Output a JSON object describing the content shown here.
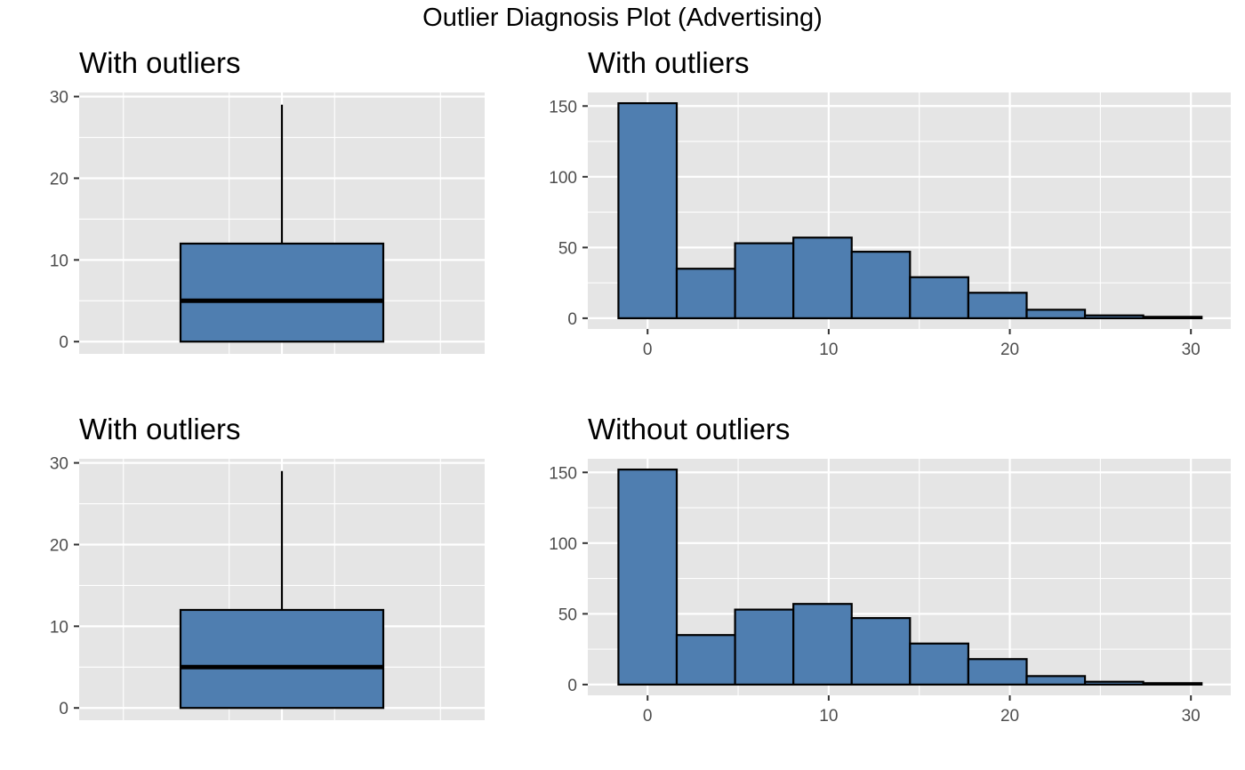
{
  "title": "Outlier Diagnosis Plot (Advertising)",
  "colors": {
    "fill": "#4f7eb0",
    "stroke": "#000000",
    "panel": "#e5e5e5",
    "grid": "#ffffff"
  },
  "chart_data": [
    {
      "type": "box",
      "title": "With outliers",
      "ylim": [
        -1.5,
        30.5
      ],
      "yticks": [
        0,
        10,
        20,
        30
      ],
      "ytick_labels": [
        "0",
        "10",
        "20",
        "30"
      ],
      "box": {
        "min": 0,
        "q1": 0,
        "median": 5,
        "q3": 12,
        "max": 29
      },
      "grid": true
    },
    {
      "type": "bar",
      "title": "With outliers",
      "xlim": [
        -3.3,
        32.2
      ],
      "ylim": [
        -7.6,
        159.6
      ],
      "xticks": [
        0,
        10,
        20,
        30
      ],
      "xtick_labels": [
        "0",
        "10",
        "20",
        "30"
      ],
      "yticks": [
        0,
        50,
        100,
        150
      ],
      "ytick_labels": [
        "0",
        "50",
        "100",
        "150"
      ],
      "bin_width": 3.22,
      "bin_starts": [
        -1.61,
        1.61,
        4.83,
        8.05,
        11.27,
        14.49,
        17.71,
        20.93,
        24.15,
        27.37
      ],
      "values": [
        152,
        35,
        53,
        57,
        47,
        29,
        18,
        6,
        2,
        1
      ],
      "grid": true
    },
    {
      "type": "box",
      "title": "With outliers",
      "ylim": [
        -1.5,
        30.5
      ],
      "yticks": [
        0,
        10,
        20,
        30
      ],
      "ytick_labels": [
        "0",
        "10",
        "20",
        "30"
      ],
      "box": {
        "min": 0,
        "q1": 0,
        "median": 5,
        "q3": 12,
        "max": 29
      },
      "grid": true
    },
    {
      "type": "bar",
      "title": "Without outliers",
      "xlim": [
        -3.3,
        32.2
      ],
      "ylim": [
        -7.6,
        159.6
      ],
      "xticks": [
        0,
        10,
        20,
        30
      ],
      "xtick_labels": [
        "0",
        "10",
        "20",
        "30"
      ],
      "yticks": [
        0,
        50,
        100,
        150
      ],
      "ytick_labels": [
        "0",
        "50",
        "100",
        "150"
      ],
      "bin_width": 3.22,
      "bin_starts": [
        -1.61,
        1.61,
        4.83,
        8.05,
        11.27,
        14.49,
        17.71,
        20.93,
        24.15,
        27.37
      ],
      "values": [
        152,
        35,
        53,
        57,
        47,
        29,
        18,
        6,
        2,
        1
      ],
      "grid": true
    }
  ]
}
